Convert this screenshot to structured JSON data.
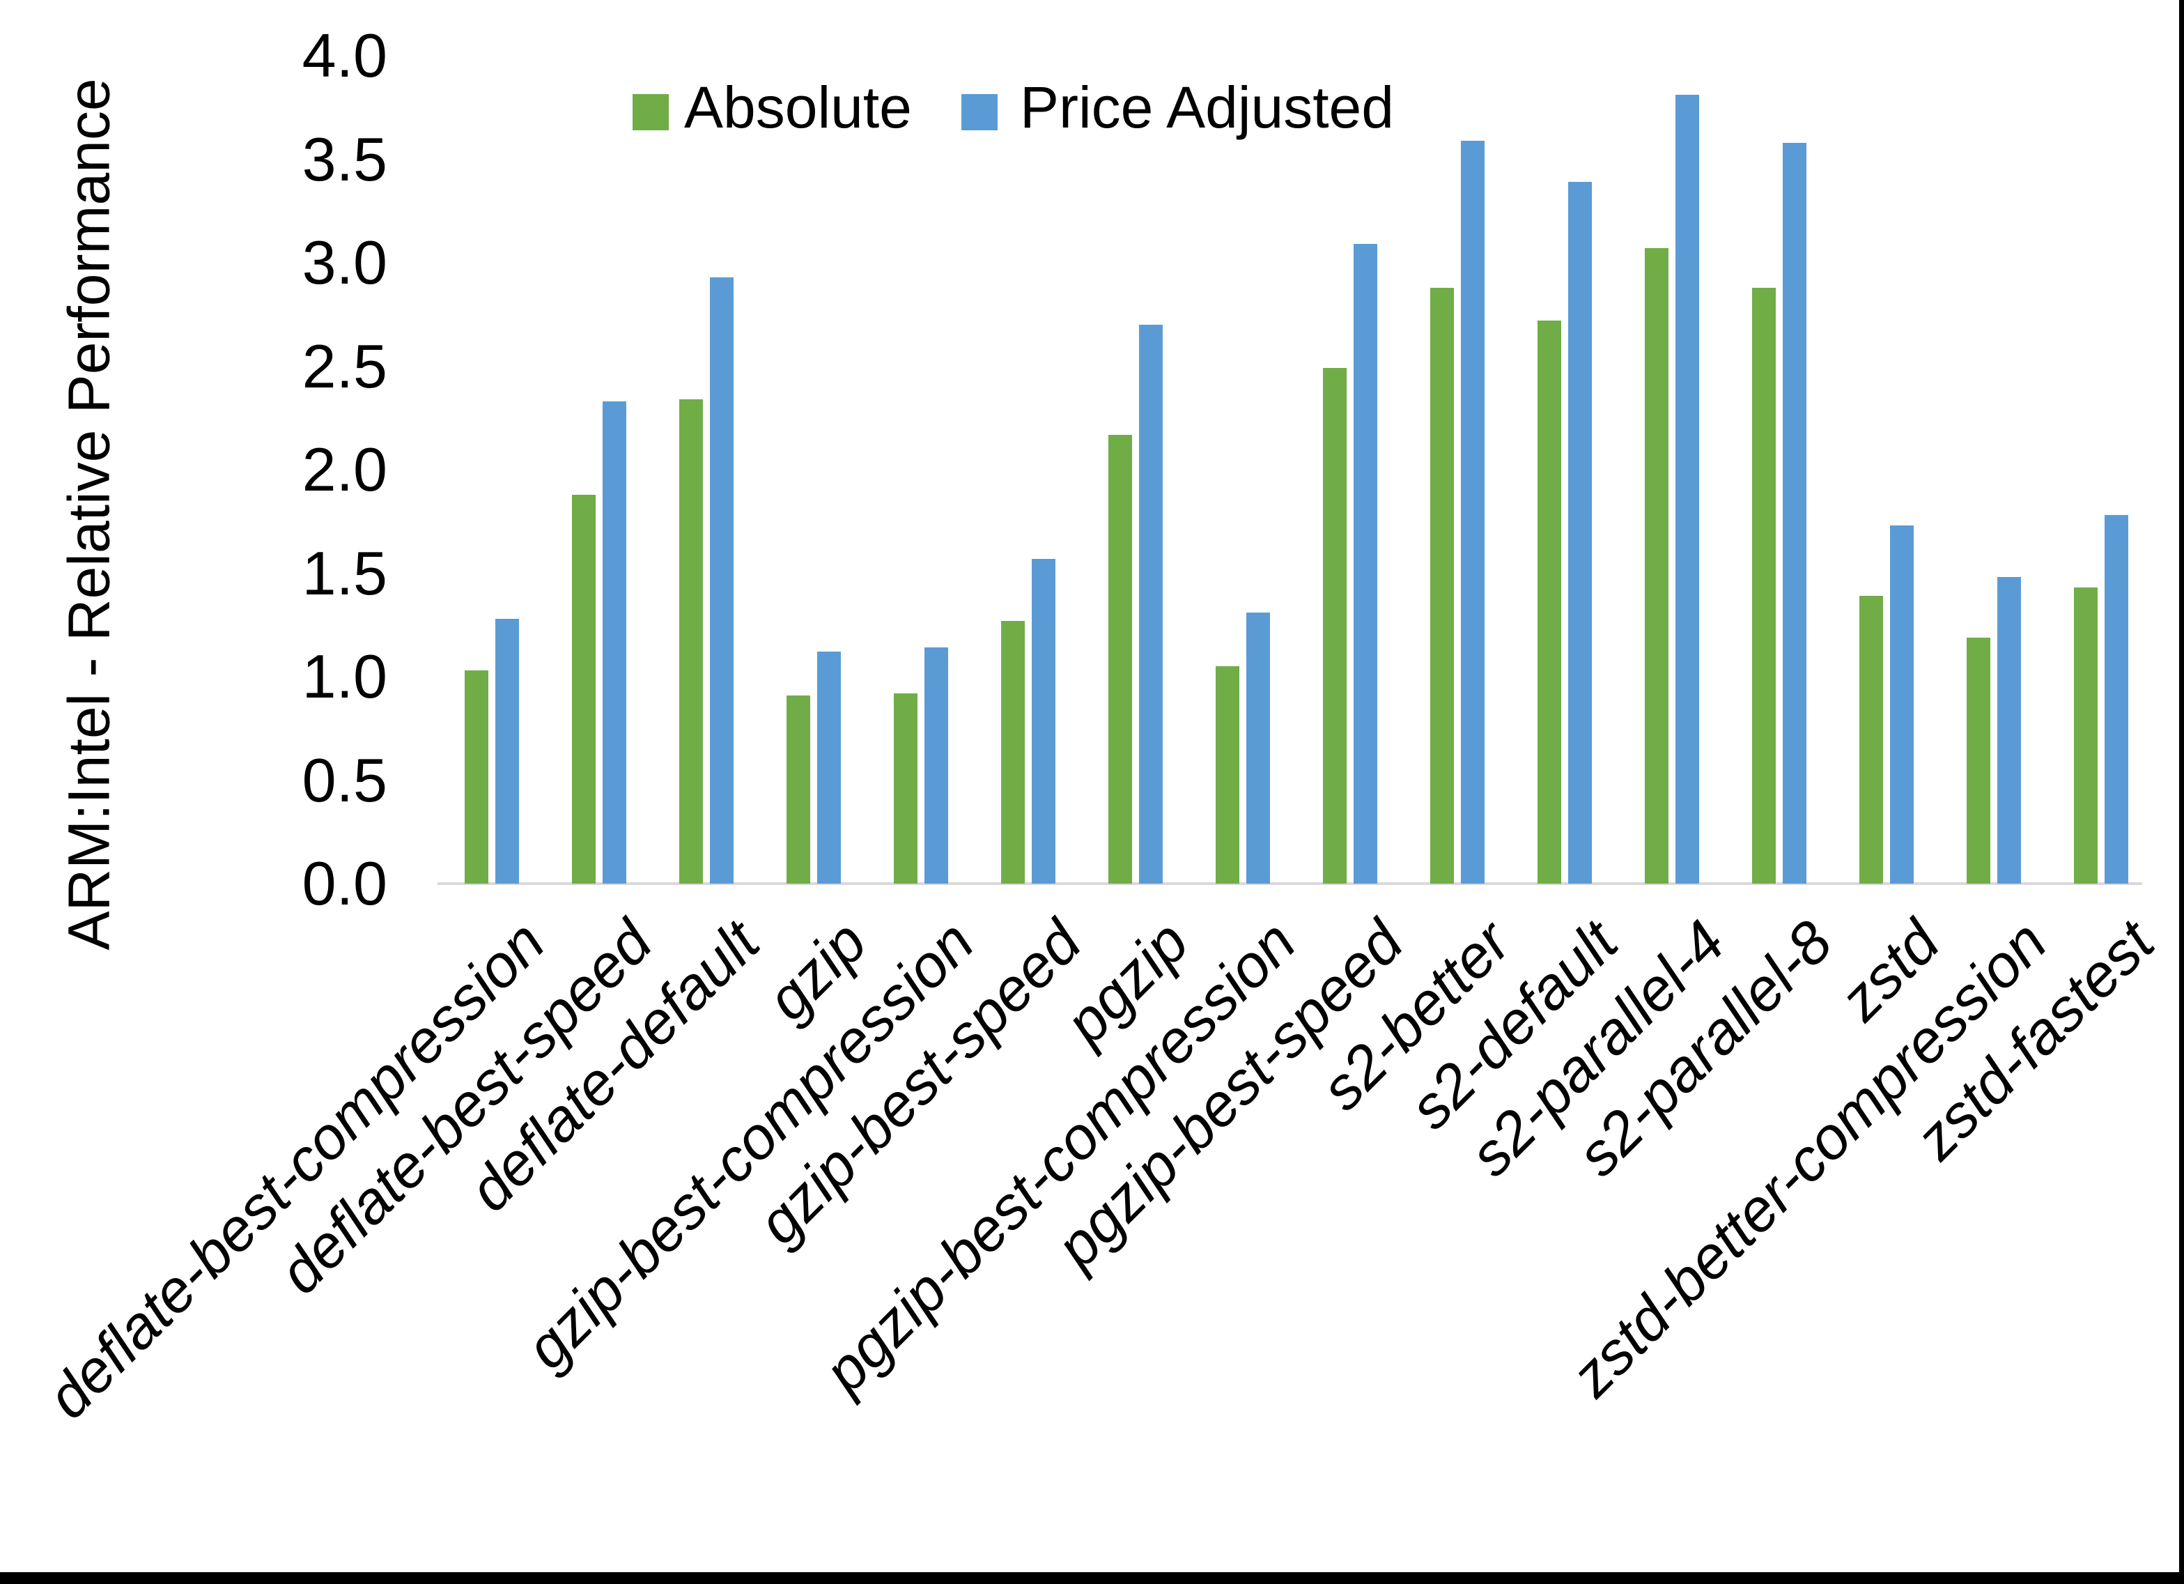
{
  "page": {
    "background_color": "#FFFFFF",
    "frame_border_color": "#000000"
  },
  "axis_colors": {
    "baseline": "#D9D9D9",
    "text": "#000000"
  },
  "chart_data": {
    "type": "bar",
    "title": "",
    "xlabel": "",
    "ylabel": "ARM:Intel - Relative Performance",
    "ylim": [
      0.0,
      4.0
    ],
    "ytick_step": 0.5,
    "ytick_decimals": 1,
    "grid": false,
    "legend_position": "top-center",
    "categories": [
      "deflate-best-compression",
      "deflate-best-speed",
      "deflate-default",
      "gzip",
      "gzip-best-compression",
      "gzip-best-speed",
      "pgzip",
      "pgzip-best-compression",
      "pgzip-best-speed",
      "s2-better",
      "s2-default",
      "s2-parallel-4",
      "s2-parallel-8",
      "zstd",
      "zstd-better-compression",
      "zstd-fastest"
    ],
    "series": [
      {
        "name": "Absolute",
        "color": "#70AD47",
        "values": [
          1.03,
          1.88,
          2.34,
          0.91,
          0.92,
          1.27,
          2.17,
          1.05,
          2.49,
          2.88,
          2.72,
          3.07,
          2.88,
          1.39,
          1.19,
          1.43
        ]
      },
      {
        "name": "Price Adjusted",
        "color": "#5B9BD5",
        "values": [
          1.28,
          2.33,
          2.93,
          1.12,
          1.14,
          1.57,
          2.7,
          1.31,
          3.09,
          3.59,
          3.39,
          3.81,
          3.58,
          1.73,
          1.48,
          1.78
        ]
      }
    ]
  }
}
